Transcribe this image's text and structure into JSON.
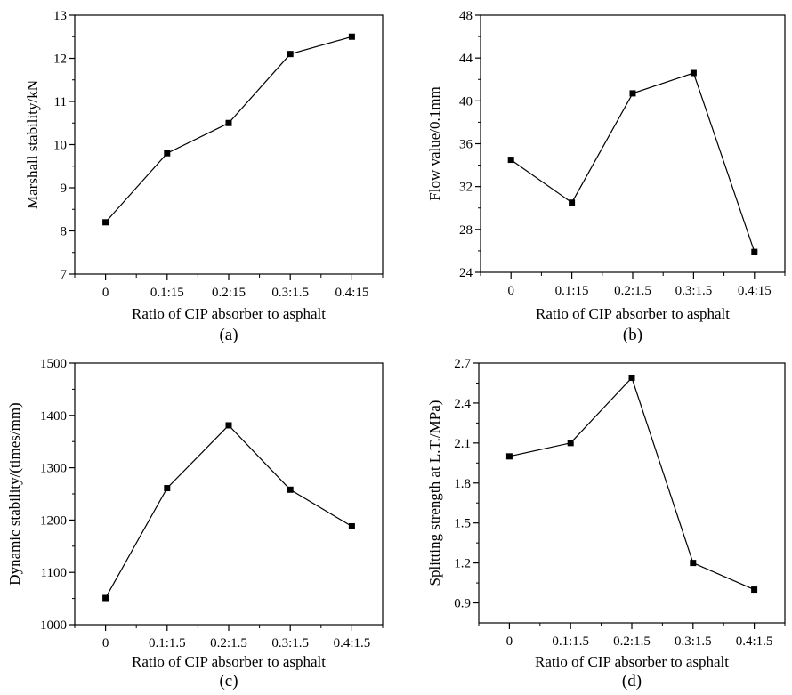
{
  "chart_data": [
    {
      "type": "line",
      "panel_label": "(a)",
      "xlabel": "Ratio of CIP absorber to asphalt",
      "ylabel": "Marshall  stability/kN",
      "categories": [
        "0",
        "0.1:15",
        "0.2:15",
        "0.3:1.5",
        "0.4:15"
      ],
      "values": [
        8.2,
        9.8,
        10.5,
        12.1,
        12.5
      ],
      "ylim": [
        7,
        13
      ],
      "yticks": [
        7,
        8,
        9,
        10,
        11,
        12,
        13
      ],
      "grid": false,
      "marker": "square",
      "color": "#000000"
    },
    {
      "type": "line",
      "panel_label": "(b)",
      "xlabel": "Ratio of CIP absorber to asphalt",
      "ylabel": "Flow value/0.1mm",
      "categories": [
        "0",
        "0.1:15",
        "0.2:1.5",
        "0.3:1.5",
        "0.4:15"
      ],
      "values": [
        34.5,
        30.5,
        40.7,
        42.6,
        25.9
      ],
      "ylim": [
        24,
        48
      ],
      "yticks": [
        24,
        28,
        32,
        36,
        40,
        44,
        48
      ],
      "grid": false,
      "marker": "square",
      "color": "#000000"
    },
    {
      "type": "line",
      "panel_label": "(c)",
      "xlabel": "Ratio of CIP absorber to asphalt",
      "ylabel": "Dynamic stability/(times/mm)",
      "categories": [
        "0",
        "0.1:1.5",
        "0.2:1.5",
        "0.3:1.5",
        "0.4:1.5"
      ],
      "values": [
        1051,
        1261,
        1381,
        1258,
        1188
      ],
      "ylim": [
        1000,
        1500
      ],
      "yticks": [
        1000,
        1100,
        1200,
        1300,
        1400,
        1500
      ],
      "grid": false,
      "marker": "square",
      "color": "#000000"
    },
    {
      "type": "line",
      "panel_label": "(d)",
      "xlabel": "Ratio of CIP absorber to asphalt",
      "ylabel": "Splitting strength at L.T./MPa)",
      "categories": [
        "0",
        "0.1:1.5",
        "0.2:1.5",
        "0.3:1.5",
        "0.4:1.5"
      ],
      "values": [
        2.0,
        2.1,
        2.59,
        1.2,
        1.0
      ],
      "ylim": [
        0.75,
        2.7
      ],
      "yticks": [
        0.9,
        1.2,
        1.5,
        1.8,
        2.1,
        2.4,
        2.7
      ],
      "tick_labels": [
        "0.9",
        "1.2",
        "1.5",
        "1.8",
        "2.1",
        "2.4",
        "2.7"
      ],
      "grid": false,
      "marker": "square",
      "color": "#000000"
    }
  ]
}
